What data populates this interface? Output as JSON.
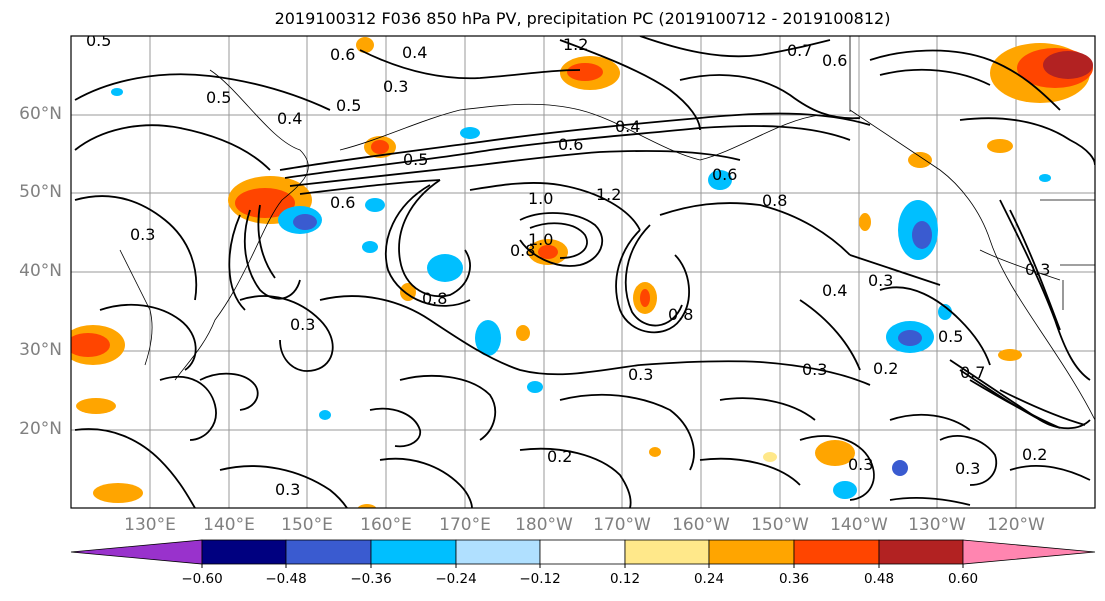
{
  "title": "2019100312 F036 850 hPa PV, precipitation PC (2019100712 - 2019100812)",
  "map": {
    "lat_labels": [
      "60°N",
      "50°N",
      "40°N",
      "30°N",
      "20°N"
    ],
    "lon_labels": [
      "130°E",
      "140°E",
      "150°E",
      "160°E",
      "170°E",
      "180°W",
      "170°W",
      "160°W",
      "150°W",
      "140°W",
      "130°W",
      "120°W"
    ],
    "contour_labels": [
      "0.5",
      "0.6",
      "0.4",
      "0.3",
      "1.2",
      "0.7",
      "0.6",
      "0.5",
      "0.4",
      "0.5",
      "0.4",
      "0.5",
      "0.6",
      "1.0",
      "1.2",
      "0.6",
      "0.8",
      "0.6",
      "0.3",
      "1.0",
      "0.8",
      "0.8",
      "0.8",
      "0.4",
      "0.3",
      "0.3",
      "0.3",
      "0.5",
      "0.3",
      "0.7",
      "0.3",
      "0.2",
      "0.2",
      "0.3",
      "0.3",
      "0.3",
      "0.2"
    ]
  },
  "colorbar": {
    "ticks": [
      "−0.60",
      "−0.48",
      "−0.36",
      "−0.24",
      "−0.12",
      "0.12",
      "0.24",
      "0.36",
      "0.48",
      "0.60"
    ],
    "colors": [
      "#9932cc",
      "#000080",
      "#3a5bd0",
      "#00bfff",
      "#b0e0ff",
      "#ffffff",
      "#ffe88a",
      "#ffa500",
      "#ff4500",
      "#b22222",
      "#ff85b0"
    ]
  }
}
